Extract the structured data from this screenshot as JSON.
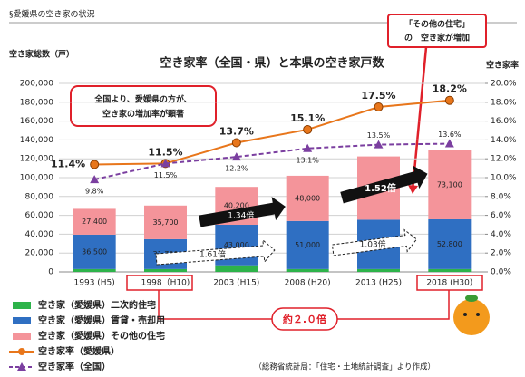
{
  "chart_data": {
    "type": "bar",
    "header": "§愛媛県の空き家の状況",
    "title": "空き家率（全国・県）と本県の空き家戸数",
    "ylabel": "空き家総数（戸）",
    "y2label": "空き家率",
    "categories": [
      "1993 (H5)",
      "1998（H10)",
      "2003 (H15)",
      "2008 (H20)",
      "2013 (H25)",
      "2018 (H30)"
    ],
    "series": [
      {
        "name": "空き家（愛媛県）二次的住宅",
        "type": "bar",
        "color": "#2db34a",
        "values": [
          3000,
          3000,
          7000,
          3000,
          3000,
          3000
        ]
      },
      {
        "name": "空き家（愛媛県）賃貸・売却用",
        "type": "bar",
        "color": "#2f6fc2",
        "values": [
          36500,
          31700,
          43000,
          51000,
          52400,
          52800
        ],
        "value_labels": [
          "36,500",
          "31,700",
          "43,000",
          "51,000",
          "52,400",
          "52,800"
        ]
      },
      {
        "name": "空き家（愛媛県）その他の住宅",
        "type": "bar",
        "color": "#f4949a",
        "values": [
          27400,
          35700,
          40200,
          48000,
          67100,
          73100
        ],
        "value_labels": [
          "27,400",
          "35,700",
          "40,200",
          "48,000",
          "67,100",
          "73,100"
        ]
      },
      {
        "name": "空き家率（愛媛県）",
        "type": "line",
        "axis": "y2",
        "color": "#e8761b",
        "marker": "circle",
        "values": [
          11.4,
          11.5,
          13.7,
          15.1,
          17.5,
          18.2
        ],
        "value_labels": [
          "11.4%",
          "11.5%",
          "13.7%",
          "15.1%",
          "17.5%",
          "18.2%"
        ]
      },
      {
        "name": "空き家率（全国）",
        "type": "line",
        "axis": "y2",
        "color": "#7b3fa0",
        "marker": "triangle",
        "dashed": true,
        "values": [
          9.8,
          11.5,
          12.2,
          13.1,
          13.5,
          13.6
        ],
        "value_labels": [
          "9.8%",
          "11.5%",
          "12.2%",
          "13.1%",
          "13.5%",
          "13.6%"
        ]
      }
    ],
    "ylim": [
      0,
      200000
    ],
    "yticks": [
      0,
      {
        "value": 20000,
        "label": "20,000"
      },
      {
        "value": 40000,
        "label": "40,000"
      },
      {
        "value": 60000,
        "label": "60,000"
      },
      {
        "value": 80000,
        "label": "80,000"
      },
      {
        "value": 100000,
        "label": "100,000"
      },
      {
        "value": 120000,
        "label": "120,000"
      },
      {
        "value": 140000,
        "label": "140,000"
      },
      {
        "value": 160000,
        "label": "160,000"
      },
      {
        "value": 180000,
        "label": "180,000"
      },
      {
        "value": 200000,
        "label": "200,000"
      }
    ],
    "y2lim": [
      0,
      20
    ],
    "y2ticks": [
      {
        "value": 0,
        "label": "0.0%"
      },
      {
        "value": 2,
        "label": "2.0%"
      },
      {
        "value": 4,
        "label": "4.0%"
      },
      {
        "value": 6,
        "label": "6.0%"
      },
      {
        "value": 8,
        "label": "8.0%"
      },
      {
        "value": 10,
        "label": "10.0%"
      },
      {
        "value": 12,
        "label": "12.0%"
      },
      {
        "value": 14,
        "label": "14.0%"
      },
      {
        "value": 16,
        "label": "16.0%"
      },
      {
        "value": 18,
        "label": "18.0%"
      },
      {
        "value": 20,
        "label": "20.0%"
      }
    ],
    "grid": true,
    "annotations": [
      "全国より、愛媛県の方が、",
      "空き家の増加率が顕著",
      "「その他の住宅」",
      "の　空き家が増加",
      "1.34倍",
      "1.52倍",
      "1.61倍",
      "1.03倍",
      "約２.０倍"
    ],
    "source": "（総務省統計局：「住宅・土地統計調査」より作成）"
  }
}
